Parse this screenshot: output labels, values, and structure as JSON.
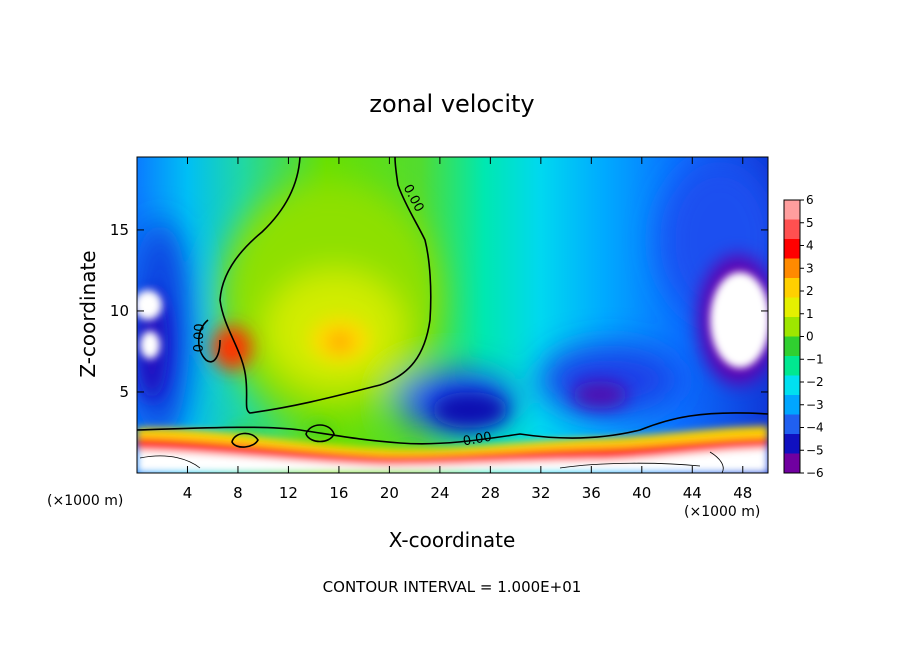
{
  "chart_data": {
    "type": "heatmap",
    "title": "zonal velocity",
    "xlabel": "X-coordinate",
    "ylabel": "Z-coordinate",
    "x_unit": "(×1000 m)",
    "xlim": [
      0,
      50
    ],
    "ylim": [
      0,
      19.5
    ],
    "x_ticks": [
      4,
      8,
      12,
      16,
      20,
      24,
      28,
      32,
      36,
      40,
      44,
      48
    ],
    "y_ticks": [
      5,
      10,
      15
    ],
    "colorbar": {
      "levels": [
        6,
        5,
        4,
        3,
        2,
        1,
        0,
        -1,
        -2,
        -3,
        -4,
        -5,
        -6
      ],
      "colors": [
        "#ff9e9e",
        "#ff5050",
        "#ff0000",
        "#ff8a00",
        "#ffd000",
        "#e5f000",
        "#9ee600",
        "#30d030",
        "#00e890",
        "#00e0f0",
        "#00a6ff",
        "#2060f0",
        "#1010c0",
        "#7000a0"
      ]
    },
    "contour_labels": [
      "0.00",
      "0.00",
      "0.00"
    ],
    "footer": "CONTOUR INTERVAL = 1.000E+01"
  }
}
